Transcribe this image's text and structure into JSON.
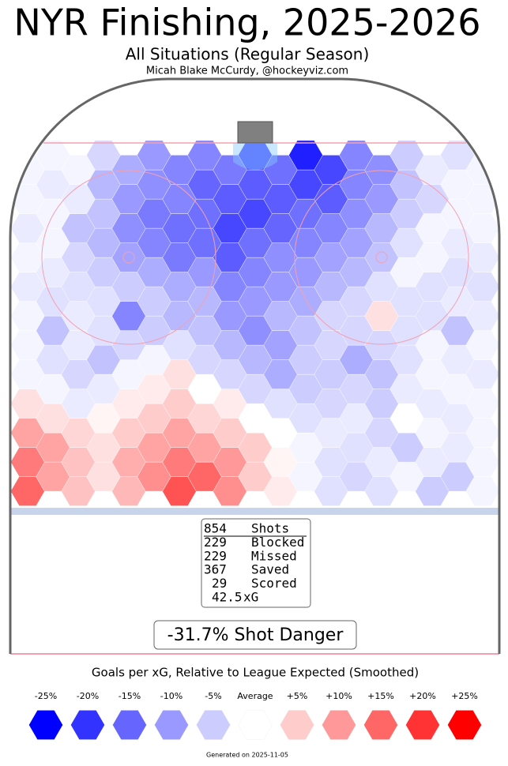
{
  "chart_data": {
    "type": "hexbin",
    "title": "NYR Finishing, 2025-2026",
    "subtitle": "All Situations (Regular Season)",
    "author": "Micah Blake McCurdy, @hockeyviz.com",
    "clim": [
      -25,
      25
    ],
    "color_low": "#0000ff",
    "color_high": "#ff0000",
    "rows": [
      [
        15,
        6,
        7,
        17,
        11,
        2,
        -3,
        -3,
        -5,
        -1
      ],
      [
        9,
        3,
        11,
        15,
        5,
        -1,
        -4,
        -1,
        -5
      ],
      [
        13,
        6,
        8,
        13,
        10,
        1,
        -3,
        -2,
        -2,
        -1
      ],
      [
        9,
        3,
        9,
        9,
        5,
        -1,
        -3,
        -5,
        -2
      ],
      [
        9,
        4,
        5,
        9,
        5,
        0,
        -2,
        -4,
        -1,
        -1
      ],
      [
        3,
        1,
        5,
        4,
        0,
        -3,
        -2,
        0,
        -2
      ],
      [
        3,
        -2,
        2,
        5,
        2,
        -3,
        -4,
        -5,
        -2,
        -1
      ],
      [
        -1,
        -2,
        2,
        0,
        -4,
        -5,
        -4,
        -2,
        -1
      ],
      [
        -1,
        -4,
        -1,
        3,
        -4,
        -8,
        -5,
        -6,
        -1,
        -2
      ],
      [
        -3,
        -6,
        -1,
        -4,
        -7,
        -5,
        -8,
        -3,
        -2
      ],
      [
        -1,
        -2,
        -4,
        -3,
        -7,
        -9,
        -4,
        -4,
        -1,
        -1
      ],
      [
        -6,
        -3,
        -5,
        -6,
        -11,
        -6,
        -4,
        -3,
        -6
      ],
      [
        -1,
        -2,
        -12,
        -7,
        -10,
        -7,
        -4,
        3,
        -3,
        -2
      ],
      [
        -3,
        -3,
        -5,
        -7,
        -10,
        -8,
        -4,
        -3,
        -2
      ],
      [
        -2,
        -3,
        -5,
        -8,
        -12,
        -10,
        -7,
        -3,
        -3,
        -3
      ],
      [
        -2,
        -5,
        -8,
        -10,
        -12,
        -10,
        -7,
        -1,
        -3
      ],
      [
        -1,
        -4,
        -9,
        -13,
        -16,
        -11,
        -9,
        -6,
        -1,
        -2
      ],
      [
        -1,
        -7,
        -12,
        -14,
        -14,
        -12,
        -9,
        -3,
        -2
      ],
      [
        -2,
        -6,
        -11,
        -14,
        -18,
        -15,
        -12,
        -7,
        -1,
        -1
      ],
      [
        -1,
        -6,
        -13,
        -14,
        -18,
        -14,
        -11,
        -5,
        -1
      ],
      [
        -1,
        -2,
        -10,
        -12,
        -16,
        -16,
        -16,
        -10,
        -4,
        -1
      ],
      [
        -2,
        -7,
        -11,
        -15,
        -16,
        -18,
        -12,
        -6,
        -1
      ],
      [
        -1,
        -1,
        -8,
        -12,
        -13,
        -14,
        -18,
        -11,
        -2,
        -1
      ],
      [
        -1,
        -4,
        -10,
        -12,
        -18,
        -22,
        -12,
        -5,
        -3
      ]
    ],
    "stats": [
      [
        854,
        "Shots"
      ],
      [
        229,
        "Blocked"
      ],
      [
        229,
        "Missed"
      ],
      [
        367,
        "Saved"
      ],
      [
        29,
        "Scored"
      ],
      [
        42.5,
        "xG"
      ]
    ],
    "shot_danger": "-31.7% Shot Danger",
    "legend_title": "Goals per xG, Relative to League Expected (Smoothed)",
    "legend": [
      {
        "value": -25,
        "label": "-25%"
      },
      {
        "value": -20,
        "label": "-20%"
      },
      {
        "value": -15,
        "label": "-15%"
      },
      {
        "value": -10,
        "label": "-10%"
      },
      {
        "value": -5,
        "label": "-5%"
      },
      {
        "value": 0,
        "label": "Average"
      },
      {
        "value": 5,
        "label": "+5%"
      },
      {
        "value": 10,
        "label": "+10%"
      },
      {
        "value": 15,
        "label": "+15%"
      },
      {
        "value": 20,
        "label": "+20%"
      },
      {
        "value": 25,
        "label": "+25%"
      }
    ],
    "footer": "Generated on 2025-11-05"
  }
}
